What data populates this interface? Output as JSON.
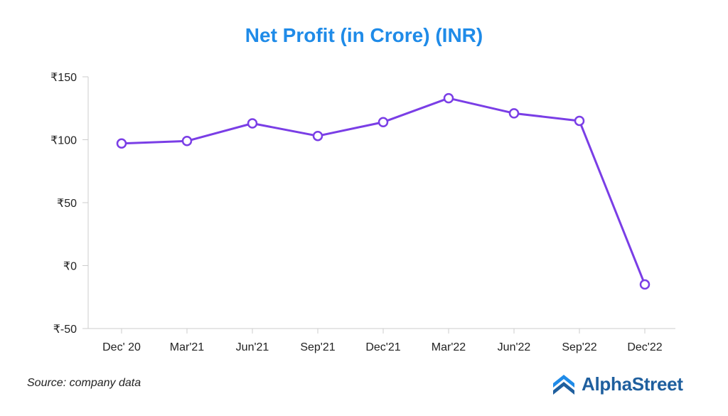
{
  "title": "Net Profit (in Crore) (INR)",
  "source": "Source: company data",
  "logo": {
    "text": "AlphaStreet",
    "icon": "alphastreet-chevron-icon"
  },
  "colors": {
    "title": "#1f8be8",
    "line": "#7a3ee6",
    "axis": "#cccccc",
    "logo": "#1f5f9e"
  },
  "chart_data": {
    "type": "line",
    "title": "Net Profit (in Crore) (INR)",
    "xlabel": "",
    "ylabel": "",
    "categories": [
      "Dec' 20",
      "Mar'21",
      "Jun'21",
      "Sep'21",
      "Dec'21",
      "Mar'22",
      "Jun'22",
      "Sep'22",
      "Dec'22"
    ],
    "series": [
      {
        "values": [
          97,
          99,
          113,
          103,
          114,
          133,
          121,
          115,
          -15
        ]
      }
    ],
    "ylim": [
      -50,
      150
    ],
    "yticks": [
      150,
      100,
      50,
      0,
      -50
    ],
    "ytick_labels": [
      "₹150",
      "₹100",
      "₹50",
      "₹0",
      "₹-50"
    ],
    "grid": false,
    "legend": "none"
  }
}
